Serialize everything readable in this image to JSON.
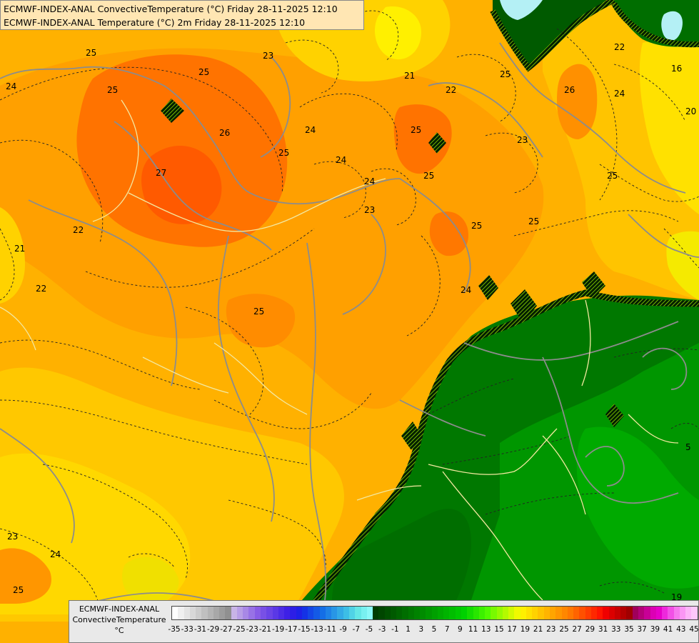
{
  "header": {
    "line1": "ECMWF-INDEX-ANAL ConvectiveTemperature (°C) Friday 28-11-2025 12:10",
    "line2": "ECMWF-INDEX-ANAL Temperature (°C) 2m Friday 28-11-2025 12:10"
  },
  "legend": {
    "title_line1": "ECMWF-INDEX-ANAL",
    "title_line2": "ConvectiveTemperature",
    "unit": "°C",
    "tick_labels": [
      "-35",
      "-33",
      "-31",
      "-29",
      "-27",
      "-25",
      "-23",
      "-21",
      "-19",
      "-17",
      "-15",
      "-13",
      "-11",
      "-9",
      "-7",
      "-5",
      "-3",
      "-1",
      "1",
      "3",
      "5",
      "7",
      "9",
      "11",
      "13",
      "15",
      "17",
      "19",
      "21",
      "23",
      "25",
      "27",
      "29",
      "31",
      "33",
      "35",
      "37",
      "39",
      "41",
      "43",
      "45"
    ],
    "colors": [
      "#ffffff",
      "#f0f0f0",
      "#e4e4e4",
      "#d8d8d8",
      "#cccccc",
      "#c0c0c0",
      "#b4b4b4",
      "#a8a8a8",
      "#9c9c9c",
      "#909090",
      "#c8b4e6",
      "#b89ee6",
      "#a888e6",
      "#9872e6",
      "#885ce6",
      "#7850e6",
      "#6a44e6",
      "#5a38e6",
      "#4c2ce6",
      "#3e20e6",
      "#2c1ee6",
      "#1e20e6",
      "#1432e6",
      "#1446e6",
      "#145ae6",
      "#146ee6",
      "#1e82e6",
      "#2896e6",
      "#32aae6",
      "#3cbee6",
      "#50d2e6",
      "#64e6e6",
      "#78f0f0",
      "#8cf8f8",
      "#003c00",
      "#004600",
      "#005000",
      "#005a00",
      "#006400",
      "#006e00",
      "#007800",
      "#008200",
      "#008c00",
      "#009600",
      "#00a000",
      "#00aa00",
      "#00b400",
      "#00be00",
      "#00c800",
      "#00d200",
      "#14dc00",
      "#28e600",
      "#3cf000",
      "#50fa00",
      "#78fa00",
      "#96fa00",
      "#b4fa00",
      "#d2fa00",
      "#f0fa00",
      "#fff000",
      "#ffe100",
      "#ffd200",
      "#ffc300",
      "#ffb400",
      "#ffa500",
      "#ff9600",
      "#ff8700",
      "#ff7800",
      "#ff6400",
      "#ff5000",
      "#ff3c00",
      "#ff2800",
      "#ff1400",
      "#f00000",
      "#dc0000",
      "#c80000",
      "#b40000",
      "#a00000",
      "#a0005a",
      "#b40078",
      "#c80096",
      "#dc00b4",
      "#e600c8",
      "#ee28dc",
      "#f250e6",
      "#f678ee",
      "#fa96f4",
      "#fcb4f8",
      "#fdc8fa"
    ]
  },
  "map_labels": [
    {
      "text": "25"
    },
    {
      "text": "26"
    },
    {
      "text": "27"
    },
    {
      "text": "23"
    },
    {
      "text": "25"
    },
    {
      "text": "24"
    },
    {
      "text": "25"
    },
    {
      "text": "22"
    },
    {
      "text": "21"
    },
    {
      "text": "22"
    },
    {
      "text": "25"
    },
    {
      "text": "24"
    },
    {
      "text": "25"
    },
    {
      "text": "25"
    },
    {
      "text": "25"
    },
    {
      "text": "24"
    },
    {
      "text": "23"
    },
    {
      "text": "25"
    },
    {
      "text": "22"
    },
    {
      "text": "21"
    },
    {
      "text": "24"
    },
    {
      "text": "25"
    },
    {
      "text": "23"
    },
    {
      "text": "24"
    },
    {
      "text": "25"
    },
    {
      "text": "24"
    },
    {
      "text": "22"
    },
    {
      "text": "20"
    },
    {
      "text": "16"
    },
    {
      "text": "25"
    },
    {
      "text": "19"
    },
    {
      "text": "5"
    },
    {
      "text": "24"
    },
    {
      "text": "23"
    },
    {
      "text": "25"
    },
    {
      "text": "26"
    }
  ]
}
